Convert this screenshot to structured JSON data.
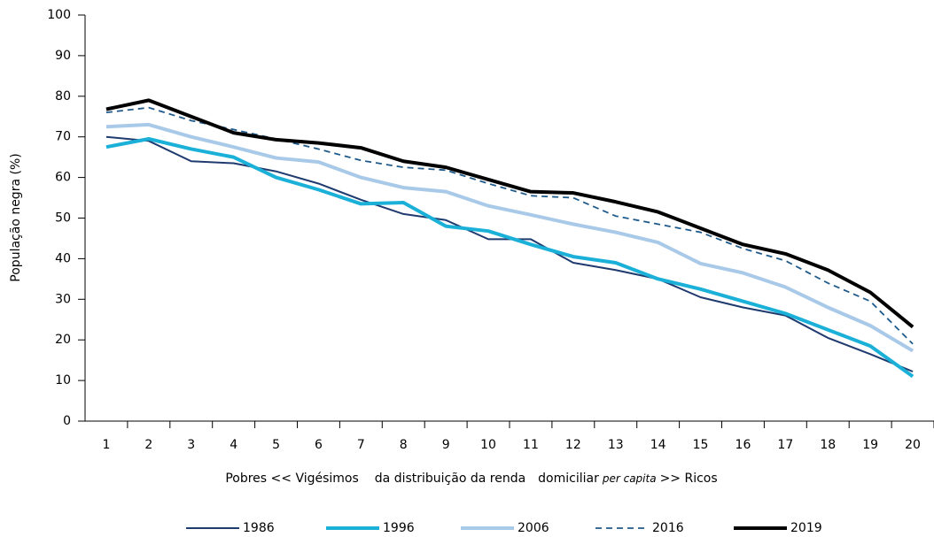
{
  "chart_data": {
    "type": "line",
    "y_label": "População negra (%)",
    "x_label": [
      "Pobres << Vigésimos",
      "da distribuição da renda",
      "domiciliar",
      "per capita",
      ">> Ricos"
    ],
    "categories": [
      "1",
      "2",
      "3",
      "4",
      "5",
      "6",
      "7",
      "8",
      "9",
      "10",
      "11",
      "12",
      "13",
      "14",
      "15",
      "16",
      "17",
      "18",
      "19",
      "20"
    ],
    "ylim": [
      0,
      100
    ],
    "yticks": [
      0,
      10,
      20,
      30,
      40,
      50,
      60,
      70,
      80,
      90,
      100
    ],
    "series": [
      {
        "name": "1986",
        "color": "#1f3a6e",
        "width": 2,
        "dash": "none",
        "values": [
          70,
          69,
          64,
          63.5,
          61.5,
          58.5,
          54.5,
          51,
          49.5,
          44.8,
          44.8,
          39,
          37.2,
          35,
          30.5,
          28,
          26,
          20.5,
          16.5,
          12.2
        ]
      },
      {
        "name": "1996",
        "color": "#1ab0d8",
        "width": 4,
        "dash": "none",
        "values": [
          67.5,
          69.5,
          67,
          65,
          60,
          57,
          53.5,
          53.8,
          48,
          46.8,
          43.5,
          40.5,
          39,
          35,
          32.5,
          29.5,
          26.5,
          22.5,
          18.5,
          11
        ]
      },
      {
        "name": "2006",
        "color": "#a9c9e8",
        "width": 4,
        "dash": "none",
        "values": [
          72.5,
          73,
          70,
          67.5,
          64.8,
          63.8,
          60,
          57.5,
          56.5,
          53,
          50.8,
          48.5,
          46.5,
          44,
          38.8,
          36.5,
          33,
          28,
          23.5,
          17.3
        ]
      },
      {
        "name": "2016",
        "color": "#1f5a8a",
        "width": 1.8,
        "dash": "7,5",
        "values": [
          76,
          77.2,
          74,
          71.8,
          69.5,
          67,
          64.2,
          62.5,
          61.8,
          58.5,
          55.5,
          55,
          50.5,
          48.5,
          46.5,
          42.5,
          39.5,
          34,
          29.5,
          19
        ]
      },
      {
        "name": "2019",
        "color": "#000000",
        "width": 4,
        "dash": "none",
        "values": [
          76.8,
          79,
          75,
          71,
          69.3,
          68.5,
          67.3,
          64,
          62.5,
          59.5,
          56.5,
          56.2,
          54,
          51.5,
          47.5,
          43.5,
          41.2,
          37.2,
          31.7,
          23.2
        ]
      }
    ]
  }
}
